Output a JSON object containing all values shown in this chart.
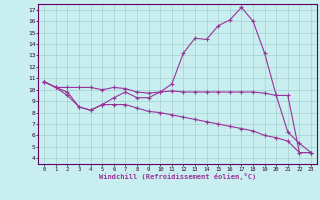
{
  "xlabel": "Windchill (Refroidissement éolien,°C)",
  "bg_color": "#c8eef0",
  "line_color": "#993399",
  "xlim": [
    -0.5,
    23.5
  ],
  "ylim": [
    3.5,
    17.5
  ],
  "xticks": [
    0,
    1,
    2,
    3,
    4,
    5,
    6,
    7,
    8,
    9,
    10,
    11,
    12,
    13,
    14,
    15,
    16,
    17,
    18,
    19,
    20,
    21,
    22,
    23
  ],
  "yticks": [
    4,
    5,
    6,
    7,
    8,
    9,
    10,
    11,
    12,
    13,
    14,
    15,
    16,
    17
  ],
  "line1_x": [
    0,
    1,
    2,
    3,
    4,
    5,
    6,
    7,
    8,
    9,
    10,
    11,
    12,
    13,
    14,
    15,
    16,
    17,
    18,
    19,
    20,
    21,
    22,
    23
  ],
  "line1_y": [
    10.7,
    10.2,
    9.8,
    8.5,
    8.2,
    8.7,
    9.3,
    9.8,
    9.3,
    9.3,
    9.8,
    10.5,
    13.2,
    14.5,
    14.4,
    15.6,
    16.1,
    17.2,
    16.0,
    13.2,
    9.5,
    6.3,
    5.3,
    4.5
  ],
  "line2_x": [
    0,
    1,
    2,
    3,
    4,
    5,
    6,
    7,
    8,
    9,
    10,
    11,
    12,
    13,
    14,
    15,
    16,
    17,
    18,
    19,
    20,
    21,
    22,
    23
  ],
  "line2_y": [
    10.7,
    10.2,
    10.2,
    10.2,
    10.2,
    10.0,
    10.2,
    10.1,
    9.8,
    9.7,
    9.8,
    9.9,
    9.8,
    9.8,
    9.8,
    9.8,
    9.8,
    9.8,
    9.8,
    9.7,
    9.5,
    9.5,
    4.5,
    4.5
  ],
  "line3_x": [
    0,
    1,
    2,
    3,
    4,
    5,
    6,
    7,
    8,
    9,
    10,
    11,
    12,
    13,
    14,
    15,
    16,
    17,
    18,
    19,
    20,
    21,
    22,
    23
  ],
  "line3_y": [
    10.7,
    10.2,
    9.5,
    8.5,
    8.2,
    8.7,
    8.7,
    8.7,
    8.4,
    8.1,
    8.0,
    7.8,
    7.6,
    7.4,
    7.2,
    7.0,
    6.8,
    6.6,
    6.4,
    6.0,
    5.8,
    5.5,
    4.5,
    4.5
  ]
}
